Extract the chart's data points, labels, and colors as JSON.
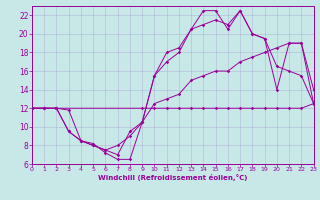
{
  "background_color": "#c8e8e8",
  "grid_color": "#b0b8d8",
  "line_color": "#990099",
  "xlabel": "Windchill (Refroidissement éolien,°C)",
  "xlabel_color": "#990099",
  "tick_color": "#990099",
  "xlim": [
    0,
    23
  ],
  "ylim": [
    6,
    23
  ],
  "yticks": [
    6,
    8,
    10,
    12,
    14,
    16,
    18,
    20,
    22
  ],
  "xticks": [
    0,
    1,
    2,
    3,
    4,
    5,
    6,
    7,
    8,
    9,
    10,
    11,
    12,
    13,
    14,
    15,
    16,
    17,
    18,
    19,
    20,
    21,
    22,
    23
  ],
  "line1_x": [
    0,
    1,
    2,
    3,
    4,
    5,
    6,
    7,
    8,
    9,
    10,
    11,
    12,
    13,
    14,
    15,
    16,
    17,
    18,
    19,
    20,
    21,
    22,
    23
  ],
  "line1_y": [
    12,
    12,
    12,
    9.5,
    8.5,
    8.0,
    7.5,
    7.0,
    9.5,
    10.5,
    12.5,
    13.0,
    13.5,
    15.0,
    15.5,
    16.0,
    16.0,
    17.0,
    17.5,
    18.0,
    18.5,
    19.0,
    19.0,
    12.5
  ],
  "line2_x": [
    0,
    2,
    9,
    10,
    11,
    12,
    13,
    14,
    15,
    16,
    17,
    18,
    19,
    20,
    21,
    22,
    23
  ],
  "line2_y": [
    12,
    12,
    12,
    12,
    12,
    12,
    12,
    12,
    12,
    12,
    12,
    12,
    12,
    12,
    12,
    12,
    12.5
  ],
  "line3_x": [
    0,
    1,
    2,
    3,
    4,
    5,
    6,
    7,
    8,
    9,
    10,
    11,
    12,
    13,
    14,
    15,
    16,
    17,
    18,
    19,
    20,
    21,
    22,
    23
  ],
  "line3_y": [
    12,
    12,
    12,
    11.8,
    8.5,
    8.0,
    7.5,
    8.0,
    9.0,
    10.5,
    15.5,
    17.0,
    18.0,
    20.5,
    21.0,
    21.5,
    21.0,
    22.5,
    20.0,
    19.5,
    16.5,
    16.0,
    15.5,
    12.5
  ],
  "line4_x": [
    0,
    1,
    2,
    3,
    4,
    5,
    6,
    7,
    8,
    9,
    10,
    11,
    12,
    13,
    14,
    15,
    16,
    17,
    18,
    19,
    20,
    21,
    22,
    23
  ],
  "line4_y": [
    12,
    12,
    12,
    9.5,
    8.5,
    8.2,
    7.2,
    6.5,
    6.5,
    10.5,
    15.5,
    18.0,
    18.5,
    20.5,
    22.5,
    22.5,
    20.5,
    22.5,
    20.0,
    19.5,
    14.0,
    19.0,
    19.0,
    14.0
  ]
}
